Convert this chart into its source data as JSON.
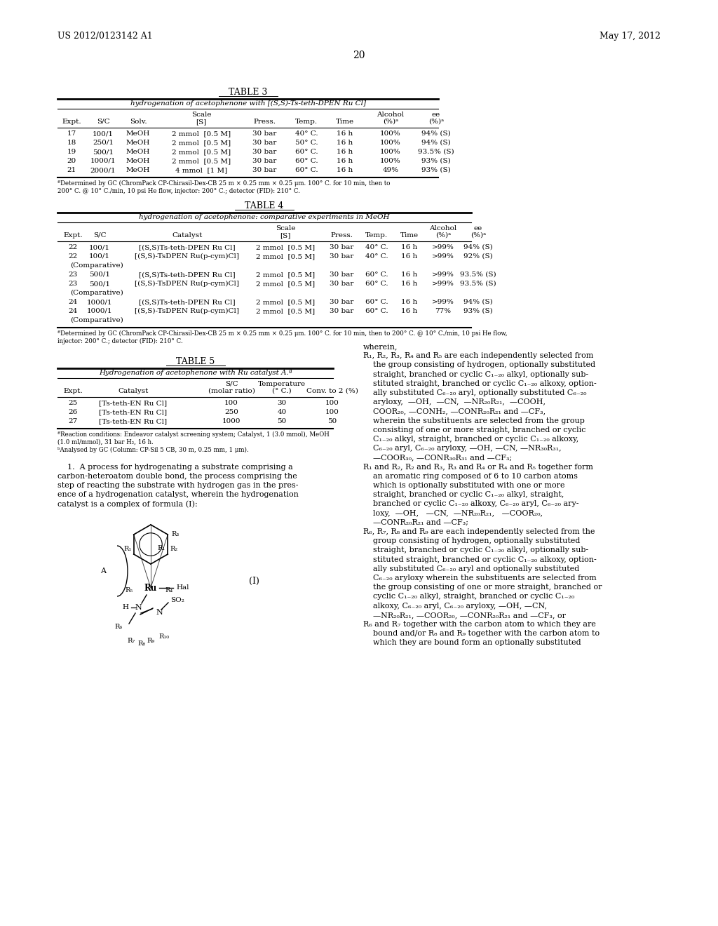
{
  "page_header_left": "US 2012/0123142 A1",
  "page_header_right": "May 17, 2012",
  "page_number": "20",
  "table3_title": "TABLE 3",
  "table3_subtitle": "hydrogenation of acetophenone with [(S,S)-Ts-teth-DPEN Ru Cl]",
  "table3_rows": [
    [
      "17",
      "100/1",
      "MeOH",
      "2 mmol  [0.5 M]",
      "30 bar",
      "40° C.",
      "16 h",
      "100%",
      "94% (S)"
    ],
    [
      "18",
      "250/1",
      "MeOH",
      "2 mmol  [0.5 M]",
      "30 bar",
      "50° C.",
      "16 h",
      "100%",
      "94% (S)"
    ],
    [
      "19",
      "500/1",
      "MeOH",
      "2 mmol  [0.5 M]",
      "30 bar",
      "60° C.",
      "16 h",
      "100%",
      "93.5% (S)"
    ],
    [
      "20",
      "1000/1",
      "MeOH",
      "2 mmol  [0.5 M]",
      "30 bar",
      "60° C.",
      "16 h",
      "100%",
      "93% (S)"
    ],
    [
      "21",
      "2000/1",
      "MeOH",
      "4 mmol  [1 M]",
      "30 bar",
      "60° C.",
      "16 h",
      "49%",
      "93% (S)"
    ]
  ],
  "table3_footnote": "ªDetermined by GC (ChromPack CP-Chirasil-Dex-CB 25 m × 0.25 mm × 0.25 μm. 100° C. for 10 min, then to\n200° C. @ 10° C./min, 10 psi He flow, injector: 200° C.; detector (FID): 210° C.",
  "table4_title": "TABLE 4",
  "table4_subtitle": "hydrogenation of acetophenone: comparative experiments in MeOH",
  "table4_rows": [
    [
      "22",
      "100/1",
      "[(S,S)Ts-teth-DPEN Ru Cl]",
      "2 mmol  [0.5 M]",
      "30 bar",
      "40° C.",
      "16 h",
      ">99%",
      "94% (S)"
    ],
    [
      "22",
      "100/1",
      "[(S,S)-TsDPEN Ru(p-cym)Cl]",
      "2 mmol  [0.5 M]",
      "30 bar",
      "40° C.",
      "16 h",
      ">99%",
      "92% (S)"
    ],
    [
      "(Comparative)",
      "",
      "",
      "",
      "",
      "",
      "",
      "",
      ""
    ],
    [
      "23",
      "500/1",
      "[(S,S)Ts-teth-DPEN Ru Cl]",
      "2 mmol  [0.5 M]",
      "30 bar",
      "60° C.",
      "16 h",
      ">99%",
      "93.5% (S)"
    ],
    [
      "23",
      "500/1",
      "[(S,S)-TsDPEN Ru(p-cym)Cl]",
      "2 mmol  [0.5 M]",
      "30 bar",
      "60° C.",
      "16 h",
      ">99%",
      "93.5% (S)"
    ],
    [
      "(Comparative)",
      "",
      "",
      "",
      "",
      "",
      "",
      "",
      ""
    ],
    [
      "24",
      "1000/1",
      "[(S,S)Ts-teth-DPEN Ru Cl]",
      "2 mmol  [0.5 M]",
      "30 bar",
      "60° C.",
      "16 h",
      ">99%",
      "94% (S)"
    ],
    [
      "24",
      "1000/1",
      "[(S,S)-TsDPEN Ru(p-cym)Cl]",
      "2 mmol  [0.5 M]",
      "30 bar",
      "60° C.",
      "16 h",
      "77%",
      "93% (S)"
    ],
    [
      "(Comparative)",
      "",
      "",
      "",
      "",
      "",
      "",
      "",
      ""
    ]
  ],
  "table4_footnote": "ªDetermined by GC (ChromPack CP-Chirasil-Dex-CB 25 m × 0.25 mm × 0.25 μm. 100° C. for 10 min, then to 200° C. @ 10° C./min, 10 psi He flow,\ninjector: 200° C.; detector (FID): 210° C.",
  "table5_title": "TABLE 5",
  "table5_subtitle": "Hydrogenation of acetophenone with Ru catalyst A.ª",
  "table5_headers": [
    "Expt.",
    "Catalyst",
    "S/C\n(molar ratio)",
    "Temperature\n(° C.)",
    "Conv. to 2 (%)"
  ],
  "table5_rows": [
    [
      "25",
      "[Ts-teth-EN Ru Cl]",
      "100",
      "30",
      "100"
    ],
    [
      "26",
      "[Ts-teth-EN Ru Cl]",
      "250",
      "40",
      "100"
    ],
    [
      "27",
      "[Ts-teth-EN Ru Cl]",
      "1000",
      "50",
      "50"
    ]
  ],
  "table5_footnote1": "ªReaction conditions: Endeavor catalyst screening system; Catalyst, 1 (3.0 mmol), MeOH\n(1.0 ml/mmol), 31 bar H₂, 16 h.",
  "table5_footnote2": "ᵇAnalysed by GC (Column: CP-Sil 5 CB, 30 m, 0.25 mm, 1 μm).",
  "claims_text_1": "    1.  A process for hydrogenating a substrate comprising a\ncarbon-heteroatom double bond, the process comprising the\nstep of reacting the substrate with hydrogen gas in the pres-\nence of a hydrogenation catalyst, wherein the hydrogenation\ncatalyst is a complex of formula (I):",
  "right_text": [
    "wherein,",
    "R₁, R₂, R₃, R₄ and R₅ are each independently selected from",
    "    the group consisting of hydrogen, optionally substituted",
    "    straight, branched or cyclic C₁₋₂₀ alkyl, optionally sub-",
    "    stituted straight, branched or cyclic C₁₋₂₀ alkoxy, option-",
    "    ally substituted C₆₋₂₀ aryl, optionally substituted C₆₋₂₀",
    "    aryloxy,  —OH,  —CN,  —NR₂₀R₂₁,  —COOH,",
    "    COOR₂₀, —CONH₂, —CONR₂₀R₂₁ and —CF₃,",
    "    wherein the substituents are selected from the group",
    "    consisting of one or more straight, branched or cyclic",
    "    C₁₋₂₀ alkyl, straight, branched or cyclic C₁₋₂₀ alkoxy,",
    "    C₆₋₂₀ aryl, C₆₋₂₀ aryloxy, —OH, —CN, —NR₃₀R₃₁,",
    "    —COOR₃₀, —CONR₃₀R₃₁ and —CF₃;",
    "R₁ and R₂, R₂ and R₃, R₃ and R₄ or R₄ and R₅ together form",
    "    an aromatic ring composed of 6 to 10 carbon atoms",
    "    which is optionally substituted with one or more",
    "    straight, branched or cyclic C₁₋₂₀ alkyl, straight,",
    "    branched or cyclic C₁₋₂₀ alkoxy, C₆₋₂₀ aryl, C₆₋₂₀ ary-",
    "    loxy,  —OH,   —CN,  —NR₂₀R₂₁,   —COOR₂₀,",
    "    —CONR₂₀R₂₁ and —CF₃;",
    "R₆, R₇, R₈ and R₉ are each independently selected from the",
    "    group consisting of hydrogen, optionally substituted",
    "    straight, branched or cyclic C₁₋₂₀ alkyl, optionally sub-",
    "    stituted straight, branched or cyclic C₁₋₂₀ alkoxy, option-",
    "    ally substituted C₆₋₂₀ aryl and optionally substituted",
    "    C₆₋₂₀ aryloxy wherein the substituents are selected from",
    "    the group consisting of one or more straight, branched or",
    "    cyclic C₁₋₂₀ alkyl, straight, branched or cyclic C₁₋₂₀",
    "    alkoxy, C₆₋₂₀ aryl, C₆₋₂₀ aryloxy, —OH, —CN,",
    "    —NR₂₀R₂₁, —COOR₂₀, —CONR₂₀R₂₁ and —CF₃, or",
    "R₆ and R₇ together with the carbon atom to which they are",
    "    bound and/or R₈ and R₉ together with the carbon atom to",
    "    which they are bound form an optionally substituted"
  ],
  "formula_label": "(I)"
}
